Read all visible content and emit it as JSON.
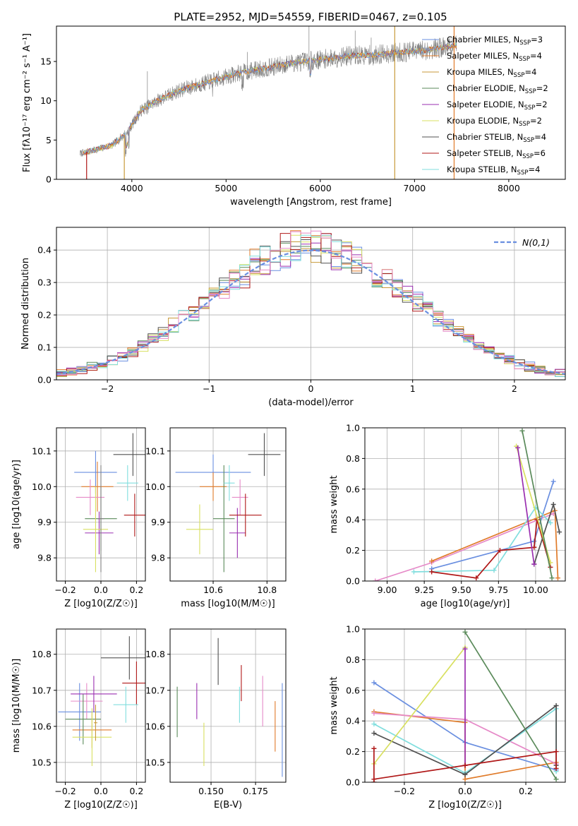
{
  "figure_title": "PLATE=2952, MJD=54559, FIBERID=0467, z=0.105",
  "colors": {
    "chabrier_miles": "#6a8fe0",
    "salpeter_miles": "#e07b2a",
    "kroupa_miles": "#c89a3a",
    "chabrier_elodie": "#5a8a5a",
    "salpeter_elodie": "#9a2fb0",
    "kroupa_elodie": "#d8e060",
    "chabrier_stelib": "#505050",
    "salpeter_stelib": "#b01818",
    "kroupa_stelib": "#80dede",
    "pink": "#e68ac8",
    "data": "#808080",
    "normal": "#6a8fe0",
    "grid": "#b0b0b0"
  },
  "chart_data": [
    {
      "id": "spectrum",
      "type": "line",
      "title": "PLATE=2952, MJD=54559, FIBERID=0467, z=0.105",
      "xlabel": "wavelength [Angstrom, rest frame]",
      "ylabel": "Flux [fλ10⁻¹⁷ erg cm⁻² s⁻¹ A⁻¹]",
      "xlim": [
        3200,
        8600
      ],
      "ylim": [
        0,
        19.5
      ],
      "xticks": [
        4000,
        5000,
        6000,
        7000,
        8000
      ],
      "yticks": [
        0,
        5,
        10,
        15
      ],
      "grid": false,
      "legend_position": "top-right",
      "continuum": {
        "x": [
          3450,
          3600,
          3800,
          3950,
          4100,
          4300,
          4500,
          4700,
          4900,
          5100,
          5300,
          5500,
          5700,
          5900,
          6100,
          6300,
          6500,
          6700,
          6900,
          7100,
          7300,
          7450
        ],
        "y": [
          3.3,
          3.7,
          4.4,
          6.0,
          8.8,
          10.2,
          11.3,
          12.0,
          12.7,
          13.4,
          13.9,
          14.3,
          14.8,
          15.1,
          15.4,
          15.7,
          15.8,
          16.0,
          16.2,
          16.4,
          16.8,
          17.0
        ]
      },
      "series": [
        {
          "name": "Chabrier MILES, N_SSP=3",
          "color_key": "chabrier_miles"
        },
        {
          "name": "Salpeter MILES, N_SSP=4",
          "color_key": "salpeter_miles"
        },
        {
          "name": "Kroupa MILES, N_SSP=4",
          "color_key": "kroupa_miles"
        },
        {
          "name": "Chabrier ELODIE, N_SSP=2",
          "color_key": "chabrier_elodie"
        },
        {
          "name": "Salpeter ELODIE, N_SSP=2",
          "color_key": "salpeter_elodie"
        },
        {
          "name": "Kroupa ELODIE, N_SSP=2",
          "color_key": "kroupa_elodie"
        },
        {
          "name": "Chabrier STELIB, N_SSP=4",
          "color_key": "chabrier_stelib"
        },
        {
          "name": "Salpeter STELIB, N_SSP=6",
          "color_key": "salpeter_stelib"
        },
        {
          "name": "Kroupa STELIB, N_SSP=4",
          "color_key": "kroupa_stelib"
        }
      ],
      "drops": [
        {
          "x": 3520,
          "color_key": "salpeter_stelib"
        },
        {
          "x": 3920,
          "color_key": "kroupa_miles"
        },
        {
          "x": 6790,
          "color_key": "kroupa_miles"
        },
        {
          "x": 7420,
          "color_key": "salpeter_miles"
        }
      ]
    },
    {
      "id": "residuals",
      "type": "histogram",
      "xlabel": "(data-model)/error",
      "ylabel": "Normed distribution",
      "xlim": [
        -2.5,
        2.5
      ],
      "ylim": [
        0,
        0.47
      ],
      "xticks": [
        -2,
        -1,
        0,
        1,
        2
      ],
      "yticks": [
        0.0,
        0.1,
        0.2,
        0.3,
        0.4
      ],
      "grid": true,
      "legend_position": "top-right",
      "legend": "N(0,1)",
      "bin_width": 0.1,
      "bin_start": -2.5
    },
    {
      "id": "age_vs_Z",
      "type": "scatter",
      "xlabel": "Z [log10(Z/Z☉)]",
      "ylabel": "age  [log10(age/yr)]",
      "xlim": [
        -0.25,
        0.25
      ],
      "ylim": [
        9.735,
        10.165
      ],
      "xticks": [
        -0.2,
        0.0,
        0.2
      ],
      "yticks": [
        9.8,
        9.9,
        10.0,
        10.1
      ],
      "grid": true,
      "points": [
        {
          "color_key": "chabrier_miles",
          "x": -0.03,
          "xerr": 0.12,
          "y": 10.04,
          "yerr": 0.06
        },
        {
          "color_key": "salpeter_miles",
          "x": -0.02,
          "xerr": 0.09,
          "y": 10.0,
          "yerr": 0.07
        },
        {
          "color_key": "pink",
          "x": -0.06,
          "xerr": 0.08,
          "y": 9.97,
          "yerr": 0.05
        },
        {
          "color_key": "chabrier_elodie",
          "x": 0.0,
          "xerr": 0.09,
          "y": 9.91,
          "yerr": 0.09
        },
        {
          "color_key": "salpeter_elodie",
          "x": -0.01,
          "xerr": 0.08,
          "y": 9.87,
          "yerr": 0.06
        },
        {
          "color_key": "kroupa_elodie",
          "x": -0.03,
          "xerr": 0.07,
          "y": 9.88,
          "yerr": 0.12
        },
        {
          "color_key": "chabrier_stelib",
          "x": 0.18,
          "xerr": 0.11,
          "y": 10.09,
          "yerr": 0.06
        },
        {
          "color_key": "salpeter_stelib",
          "x": 0.19,
          "xerr": 0.06,
          "y": 9.92,
          "yerr": 0.06
        },
        {
          "color_key": "kroupa_stelib",
          "x": 0.15,
          "xerr": 0.06,
          "y": 10.01,
          "yerr": 0.05
        },
        {
          "color_key": "data",
          "x": 0.0,
          "xerr": 0.02,
          "y": 9.91,
          "yerr": 0.15
        }
      ]
    },
    {
      "id": "age_vs_mass",
      "type": "scatter",
      "xlabel": "mass [log10(M/M☉)]",
      "ylabel": "",
      "xlim": [
        10.44,
        10.87
      ],
      "ylim": [
        9.735,
        10.165
      ],
      "xticks": [
        10.6,
        10.8
      ],
      "yticks": [
        9.8,
        9.9,
        10.0,
        10.1
      ],
      "grid": true,
      "points": [
        {
          "color_key": "chabrier_miles",
          "x": 10.6,
          "xerr": 0.14,
          "y": 10.04,
          "yerr": 0.05
        },
        {
          "color_key": "salpeter_miles",
          "x": 10.6,
          "xerr": 0.05,
          "y": 10.0,
          "yerr": 0.04
        },
        {
          "color_key": "pink",
          "x": 10.7,
          "xerr": 0.03,
          "y": 9.97,
          "yerr": 0.05
        },
        {
          "color_key": "chabrier_elodie",
          "x": 10.64,
          "xerr": 0.04,
          "y": 9.91,
          "yerr": 0.15
        },
        {
          "color_key": "salpeter_elodie",
          "x": 10.69,
          "xerr": 0.03,
          "y": 9.87,
          "yerr": 0.07
        },
        {
          "color_key": "kroupa_elodie",
          "x": 10.55,
          "xerr": 0.05,
          "y": 9.88,
          "yerr": 0.07
        },
        {
          "color_key": "chabrier_stelib",
          "x": 10.79,
          "xerr": 0.06,
          "y": 10.09,
          "yerr": 0.06
        },
        {
          "color_key": "salpeter_stelib",
          "x": 10.72,
          "xerr": 0.06,
          "y": 9.92,
          "yerr": 0.06
        },
        {
          "color_key": "kroupa_stelib",
          "x": 10.66,
          "xerr": 0.02,
          "y": 10.01,
          "yerr": 0.05
        }
      ]
    },
    {
      "id": "weight_vs_age",
      "type": "line",
      "xlabel": "age  [log10(age/yr)]",
      "ylabel": "mass weight",
      "xlim": [
        8.85,
        10.2
      ],
      "ylim": [
        0,
        1.0
      ],
      "xticks": [
        9.0,
        9.25,
        9.5,
        9.75,
        10.0
      ],
      "yticks": [
        0.0,
        0.2,
        0.4,
        0.6,
        0.8,
        1.0
      ],
      "grid": true,
      "series": [
        {
          "color_key": "pink",
          "points": [
            [
              8.92,
              0.0
            ],
            [
              9.3,
              0.12
            ],
            [
              10.12,
              0.44
            ]
          ]
        },
        {
          "color_key": "salpeter_miles",
          "points": [
            [
              9.3,
              0.13
            ],
            [
              10.13,
              0.46
            ],
            [
              10.15,
              0.02
            ]
          ]
        },
        {
          "color_key": "chabrier_miles",
          "points": [
            [
              9.3,
              0.08
            ],
            [
              9.99,
              0.26
            ],
            [
              10.12,
              0.65
            ]
          ]
        },
        {
          "color_key": "kroupa_stelib",
          "points": [
            [
              9.18,
              0.06
            ],
            [
              9.72,
              0.07
            ],
            [
              10.0,
              0.48
            ],
            [
              10.1,
              0.38
            ]
          ]
        },
        {
          "color_key": "salpeter_stelib",
          "points": [
            [
              9.3,
              0.06
            ],
            [
              9.6,
              0.02
            ],
            [
              9.76,
              0.2
            ],
            [
              9.99,
              0.22
            ],
            [
              10.01,
              0.4
            ],
            [
              10.1,
              0.09
            ]
          ]
        },
        {
          "color_key": "chabrier_stelib",
          "points": [
            [
              9.99,
              0.11
            ],
            [
              10.12,
              0.5
            ],
            [
              10.16,
              0.32
            ]
          ]
        },
        {
          "color_key": "kroupa_elodie",
          "points": [
            [
              9.87,
              0.88
            ],
            [
              10.1,
              0.12
            ]
          ]
        },
        {
          "color_key": "salpeter_elodie",
          "points": [
            [
              9.88,
              0.87
            ],
            [
              9.99,
              0.11
            ]
          ]
        },
        {
          "color_key": "chabrier_elodie",
          "points": [
            [
              9.91,
              0.98
            ],
            [
              10.11,
              0.02
            ]
          ]
        }
      ]
    },
    {
      "id": "mass_vs_Z",
      "type": "scatter",
      "xlabel": "Z [log10(Z/Z☉)]",
      "ylabel": "mass [log10(M/M☉)]",
      "xlim": [
        -0.25,
        0.25
      ],
      "ylim": [
        10.445,
        10.87
      ],
      "xticks": [
        -0.2,
        0.0,
        0.2
      ],
      "yticks": [
        10.5,
        10.6,
        10.7,
        10.8
      ],
      "grid": true,
      "points": [
        {
          "color_key": "chabrier_miles",
          "x": -0.12,
          "xerr": 0.12,
          "y": 10.64,
          "yerr": 0.08
        },
        {
          "color_key": "salpeter_miles",
          "x": -0.05,
          "xerr": 0.11,
          "y": 10.59,
          "yerr": 0.05
        },
        {
          "color_key": "pink",
          "x": -0.08,
          "xerr": 0.09,
          "y": 10.67,
          "yerr": 0.05
        },
        {
          "color_key": "chabrier_elodie",
          "x": -0.1,
          "xerr": 0.1,
          "y": 10.62,
          "yerr": 0.07
        },
        {
          "color_key": "salpeter_elodie",
          "x": -0.04,
          "xerr": 0.13,
          "y": 10.69,
          "yerr": 0.05
        },
        {
          "color_key": "kroupa_elodie",
          "x": -0.05,
          "xerr": 0.11,
          "y": 10.57,
          "yerr": 0.08
        },
        {
          "color_key": "chabrier_stelib",
          "x": 0.16,
          "xerr": 0.16,
          "y": 10.79,
          "yerr": 0.06
        },
        {
          "color_key": "salpeter_stelib",
          "x": 0.2,
          "xerr": 0.08,
          "y": 10.72,
          "yerr": 0.06
        },
        {
          "color_key": "kroupa_stelib",
          "x": 0.14,
          "xerr": 0.07,
          "y": 10.66,
          "yerr": 0.05
        },
        {
          "color_key": "kroupa_miles",
          "x": -0.03,
          "xerr": 0.01,
          "y": 10.61,
          "yerr": 0.05
        }
      ]
    },
    {
      "id": "mass_vs_ebv",
      "type": "scatter",
      "xlabel": "E(B-V)",
      "ylabel": "",
      "xlim": [
        0.127,
        0.192
      ],
      "ylim": [
        10.445,
        10.87
      ],
      "xticks": [
        0.15,
        0.175
      ],
      "yticks": [
        10.5,
        10.6,
        10.7,
        10.8
      ],
      "grid": true,
      "points": [
        {
          "color_key": "chabrier_elodie",
          "x": 0.131,
          "xerr": 0.0,
          "y": 10.64,
          "yerr": 0.07
        },
        {
          "color_key": "salpeter_elodie",
          "x": 0.142,
          "xerr": 0.0,
          "y": 10.67,
          "yerr": 0.05
        },
        {
          "color_key": "kroupa_elodie",
          "x": 0.146,
          "xerr": 0.0,
          "y": 10.55,
          "yerr": 0.06
        },
        {
          "color_key": "chabrier_stelib",
          "x": 0.154,
          "xerr": 0.0,
          "y": 10.78,
          "yerr": 0.065
        },
        {
          "color_key": "kroupa_stelib",
          "x": 0.166,
          "xerr": 0.0,
          "y": 10.66,
          "yerr": 0.05
        },
        {
          "color_key": "salpeter_stelib",
          "x": 0.167,
          "xerr": 0.0,
          "y": 10.72,
          "yerr": 0.05
        },
        {
          "color_key": "pink",
          "x": 0.179,
          "xerr": 0.0,
          "y": 10.67,
          "yerr": 0.07
        },
        {
          "color_key": "salpeter_miles",
          "x": 0.186,
          "xerr": 0.0,
          "y": 10.6,
          "yerr": 0.07
        },
        {
          "color_key": "chabrier_miles",
          "x": 0.19,
          "xerr": 0.0,
          "y": 10.59,
          "yerr": 0.13
        }
      ]
    },
    {
      "id": "weight_vs_Z",
      "type": "line",
      "xlabel": "Z [log10(Z/Z☉)]",
      "ylabel": "mass weight",
      "xlim": [
        -0.33,
        0.33
      ],
      "ylim": [
        0,
        1.0
      ],
      "xticks": [
        -0.2,
        0.0,
        0.2
      ],
      "yticks": [
        0.0,
        0.2,
        0.4,
        0.6,
        0.8,
        1.0
      ],
      "grid": true,
      "series": [
        {
          "color_key": "chabrier_miles",
          "points": [
            [
              -0.3,
              0.65
            ],
            [
              0.0,
              0.26
            ],
            [
              0.3,
              0.08
            ]
          ]
        },
        {
          "color_key": "salpeter_miles",
          "points": [
            [
              -0.3,
              0.46
            ],
            [
              0.0,
              0.39
            ],
            [
              0.0,
              0.02
            ],
            [
              0.3,
              0.13
            ]
          ]
        },
        {
          "color_key": "pink",
          "points": [
            [
              -0.3,
              0.45
            ],
            [
              0.0,
              0.41
            ],
            [
              0.3,
              0.12
            ]
          ]
        },
        {
          "color_key": "kroupa_stelib",
          "points": [
            [
              -0.3,
              0.38
            ],
            [
              0.0,
              0.06
            ],
            [
              0.3,
              0.48
            ],
            [
              0.3,
              0.07
            ]
          ]
        },
        {
          "color_key": "chabrier_stelib",
          "points": [
            [
              -0.3,
              0.32
            ],
            [
              0.0,
              0.05
            ],
            [
              0.3,
              0.5
            ],
            [
              0.3,
              0.11
            ]
          ]
        },
        {
          "color_key": "kroupa_elodie",
          "points": [
            [
              -0.3,
              0.12
            ],
            [
              0.0,
              0.88
            ]
          ]
        },
        {
          "color_key": "salpeter_elodie",
          "points": [
            [
              0.0,
              0.87
            ],
            [
              0.0,
              0.11
            ]
          ]
        },
        {
          "color_key": "chabrier_elodie",
          "points": [
            [
              0.0,
              0.98
            ],
            [
              0.3,
              0.02
            ]
          ]
        },
        {
          "color_key": "salpeter_stelib",
          "points": [
            [
              -0.3,
              0.22
            ],
            [
              -0.3,
              0.0
            ],
            [
              -0.3,
              0.02
            ],
            [
              0.0,
              0.11
            ],
            [
              0.3,
              0.2
            ],
            [
              0.3,
              0.09
            ]
          ]
        }
      ]
    }
  ]
}
